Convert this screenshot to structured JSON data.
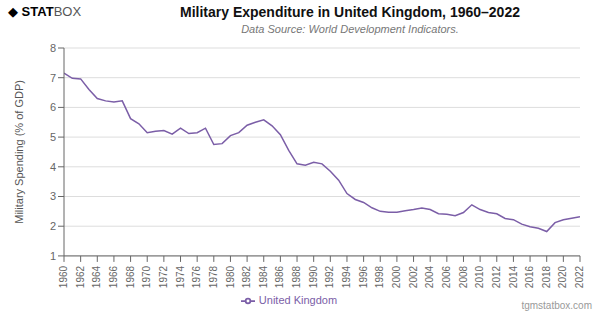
{
  "chart_data": {
    "type": "line",
    "title": "Military Expenditure in United Kingdom, 1960–2022",
    "subtitle": "Data Source: World Development Indicators.",
    "ylabel": "Military Spending (% of GDP)",
    "annotations": [
      "◆ STAT",
      "BOX",
      "tgmstatbox.com"
    ],
    "x": [
      1960,
      1961,
      1962,
      1963,
      1964,
      1965,
      1966,
      1967,
      1968,
      1969,
      1970,
      1971,
      1972,
      1973,
      1974,
      1975,
      1976,
      1977,
      1978,
      1979,
      1980,
      1981,
      1982,
      1983,
      1984,
      1985,
      1986,
      1987,
      1988,
      1989,
      1990,
      1991,
      1992,
      1993,
      1994,
      1995,
      1996,
      1997,
      1998,
      1999,
      2000,
      2001,
      2002,
      2003,
      2004,
      2005,
      2006,
      2007,
      2008,
      2009,
      2010,
      2011,
      2012,
      2013,
      2014,
      2015,
      2016,
      2017,
      2018,
      2019,
      2020,
      2021,
      2022
    ],
    "series": [
      {
        "name": "United Kingdom",
        "color": "#7B5EA7",
        "values": [
          7.15,
          6.98,
          6.96,
          6.6,
          6.3,
          6.22,
          6.18,
          6.22,
          5.62,
          5.45,
          5.15,
          5.2,
          5.22,
          5.1,
          5.3,
          5.12,
          5.15,
          5.3,
          4.75,
          4.78,
          5.05,
          5.15,
          5.4,
          5.5,
          5.58,
          5.38,
          5.08,
          4.55,
          4.1,
          4.05,
          4.15,
          4.1,
          3.85,
          3.55,
          3.1,
          2.9,
          2.8,
          2.62,
          2.5,
          2.47,
          2.47,
          2.52,
          2.56,
          2.61,
          2.56,
          2.42,
          2.4,
          2.35,
          2.46,
          2.72,
          2.56,
          2.46,
          2.42,
          2.26,
          2.22,
          2.07,
          1.98,
          1.93,
          1.82,
          2.12,
          2.22,
          2.27,
          2.32
        ]
      }
    ],
    "xlim": [
      1960,
      2022
    ],
    "xticks": [
      1960,
      1962,
      1964,
      1966,
      1968,
      1970,
      1972,
      1974,
      1976,
      1978,
      1980,
      1982,
      1984,
      1986,
      1988,
      1990,
      1992,
      1994,
      1996,
      1998,
      2000,
      2002,
      2004,
      2006,
      2008,
      2010,
      2012,
      2014,
      2016,
      2018,
      2020,
      2022
    ],
    "ylim": [
      1,
      8
    ],
    "yticks": [
      1,
      2,
      3,
      4,
      5,
      6,
      7,
      8
    ],
    "grid": true,
    "legend": "bottom"
  }
}
